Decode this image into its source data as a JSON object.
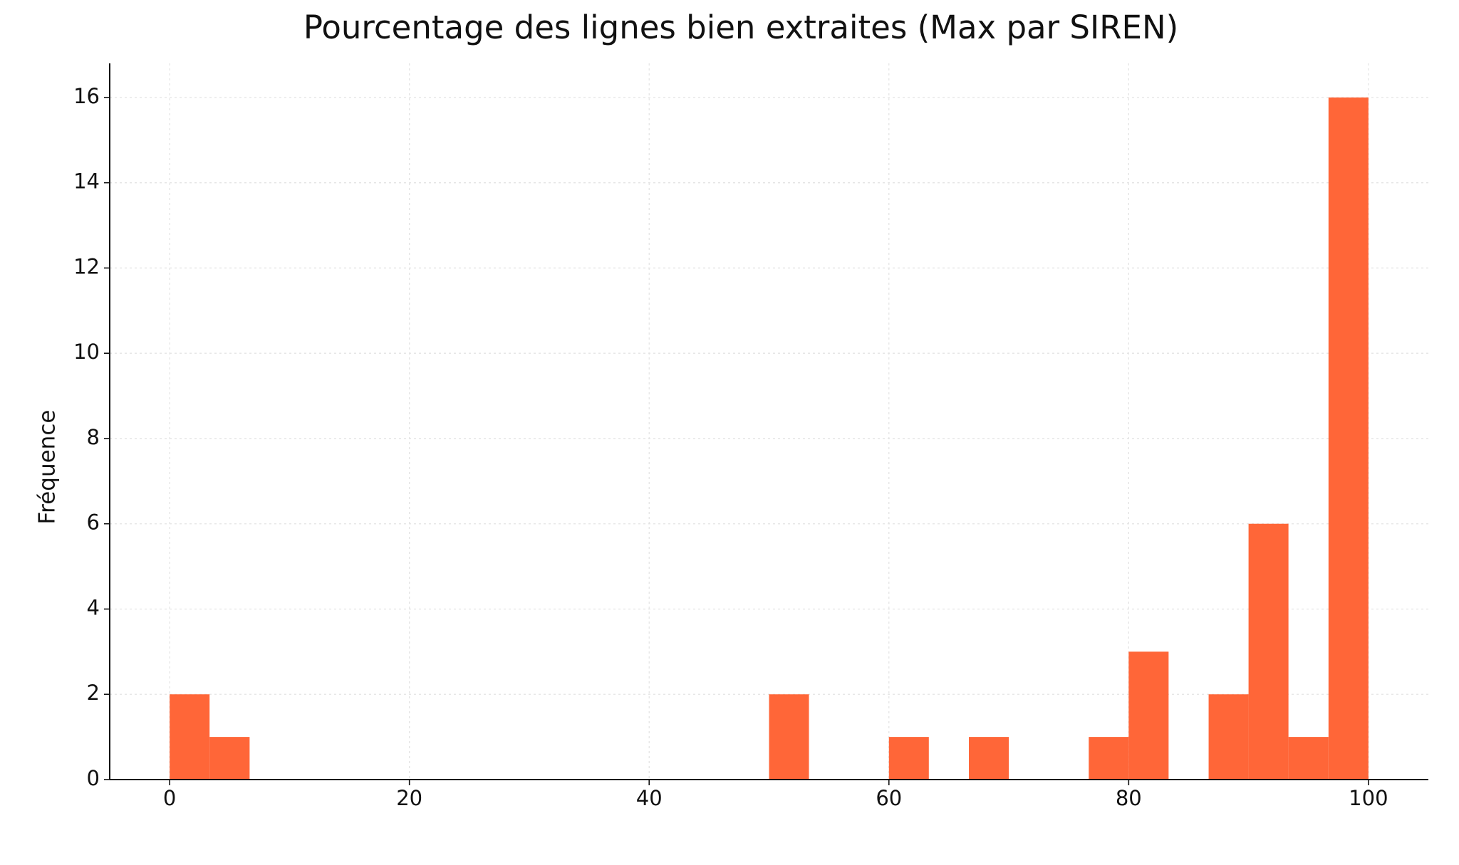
{
  "chart_data": {
    "type": "histogram",
    "title": "Pourcentage des lignes bien extraites (Max par SIREN)",
    "y_label": "Fréquence",
    "bins": [
      0,
      3.33,
      6.67,
      10,
      13.33,
      16.67,
      20,
      23.33,
      26.67,
      30,
      33.33,
      36.67,
      40,
      43.33,
      46.67,
      50,
      53.33,
      56.67,
      60,
      63.33,
      66.67,
      70,
      73.33,
      76.67,
      80,
      83.33,
      86.67,
      90,
      93.33,
      96.67,
      100
    ],
    "values": [
      2,
      1,
      0,
      0,
      0,
      0,
      0,
      0,
      0,
      0,
      0,
      0,
      0,
      0,
      0,
      2,
      0,
      0,
      1,
      0,
      1,
      0,
      0,
      1,
      3,
      0,
      2,
      6,
      1,
      16
    ],
    "color": "#ff6638",
    "xlim": [
      -5,
      105
    ],
    "xticks": [
      0,
      20,
      40,
      60,
      80,
      100
    ],
    "ylim": [
      0,
      16.8
    ],
    "yticks": [
      0,
      2,
      4,
      6,
      8,
      10,
      12,
      14,
      16
    ],
    "grid": true
  }
}
